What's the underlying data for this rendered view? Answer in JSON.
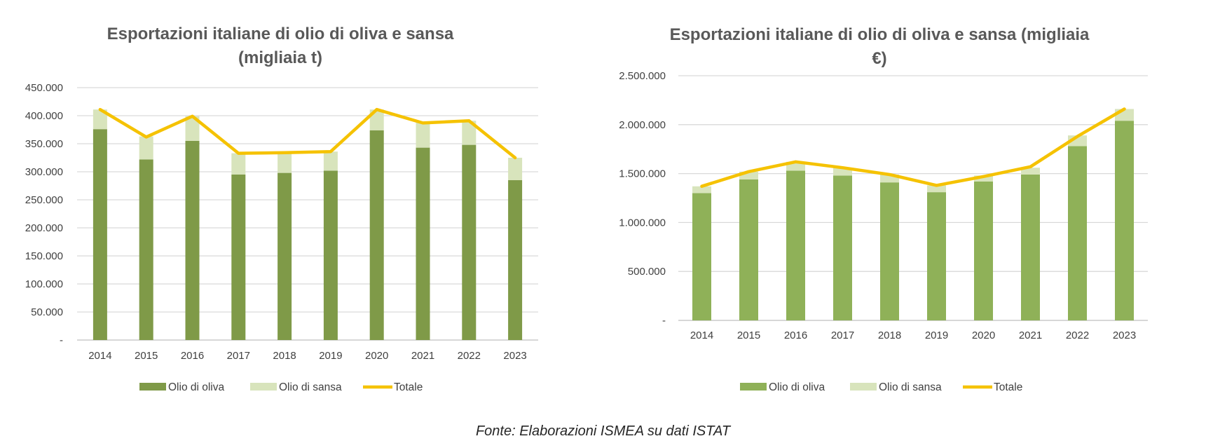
{
  "source": "Fonte: Elaborazioni ISMEA su dati ISTAT",
  "chart_data": [
    {
      "type": "bar",
      "stacked": true,
      "title_lines": [
        "Esportazioni italiane di olio di oliva e sansa",
        "(migliaia t)"
      ],
      "categories": [
        "2014",
        "2015",
        "2016",
        "2017",
        "2018",
        "2019",
        "2020",
        "2021",
        "2022",
        "2023"
      ],
      "ylim": [
        0,
        450000
      ],
      "yticks": [
        0,
        50000,
        100000,
        150000,
        200000,
        250000,
        300000,
        350000,
        400000,
        450000
      ],
      "ytick_labels": [
        "-",
        "50.000",
        "100.000",
        "150.000",
        "200.000",
        "250.000",
        "300.000",
        "350.000",
        "400.000",
        "450.000"
      ],
      "grid": true,
      "legend_position": "bottom",
      "colors": {
        "oliva": "#7f9a48",
        "sansa": "#d8e4bc",
        "totale": "#f5c200"
      },
      "series": [
        {
          "name": "Olio di oliva",
          "kind": "bar",
          "values": [
            376000,
            322000,
            355000,
            295000,
            298000,
            302000,
            374000,
            343000,
            348000,
            285000
          ]
        },
        {
          "name": "Olio di sansa",
          "kind": "bar",
          "values": [
            35000,
            41000,
            44000,
            38000,
            36000,
            34000,
            37000,
            45000,
            43000,
            40000
          ]
        },
        {
          "name": "Totale",
          "kind": "line",
          "values": [
            411000,
            362000,
            399000,
            333000,
            334000,
            336000,
            411000,
            387000,
            391000,
            325000
          ]
        }
      ]
    },
    {
      "type": "bar",
      "stacked": true,
      "title_lines": [
        "Esportazioni italiane di olio di oliva e sansa (migliaia",
        "€)"
      ],
      "categories": [
        "2014",
        "2015",
        "2016",
        "2017",
        "2018",
        "2019",
        "2020",
        "2021",
        "2022",
        "2023"
      ],
      "ylim": [
        0,
        2500000
      ],
      "yticks": [
        0,
        500000,
        1000000,
        1500000,
        2000000,
        2500000
      ],
      "ytick_labels": [
        "-",
        "500.000",
        "1.000.000",
        "1.500.000",
        "2.000.000",
        "2.500.000"
      ],
      "grid": true,
      "legend_position": "bottom",
      "colors": {
        "oliva": "#8fb158",
        "sansa": "#d8e4bc",
        "totale": "#f5c200"
      },
      "series": [
        {
          "name": "Olio di oliva",
          "kind": "bar",
          "values": [
            1300000,
            1440000,
            1530000,
            1480000,
            1410000,
            1310000,
            1420000,
            1490000,
            1780000,
            2040000
          ]
        },
        {
          "name": "Olio di sansa",
          "kind": "bar",
          "values": [
            70000,
            80000,
            90000,
            80000,
            80000,
            70000,
            60000,
            70000,
            110000,
            120000
          ]
        },
        {
          "name": "Totale",
          "kind": "line",
          "values": [
            1370000,
            1520000,
            1620000,
            1560000,
            1490000,
            1380000,
            1470000,
            1570000,
            1880000,
            2160000
          ]
        }
      ]
    }
  ]
}
